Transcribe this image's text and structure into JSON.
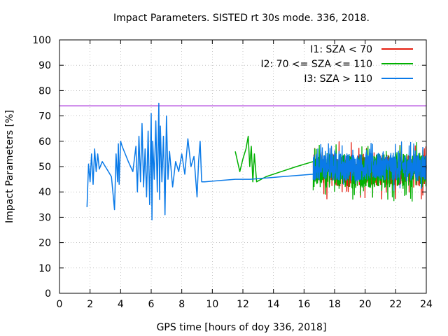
{
  "chart_data": {
    "type": "line",
    "title": "Impact Parameters. SISTED rt 30s mode. 336, 2018.",
    "xlabel": "GPS time [hours of doy 336, 2018]",
    "ylabel": "Impact Parameters [%]",
    "xlim": [
      0,
      24
    ],
    "ylim": [
      0,
      100
    ],
    "xticks": [
      0,
      2,
      4,
      6,
      8,
      10,
      12,
      14,
      16,
      18,
      20,
      22,
      24
    ],
    "yticks": [
      0,
      10,
      20,
      30,
      40,
      50,
      60,
      70,
      80,
      90,
      100
    ],
    "grid": true,
    "legend_position": "top-right",
    "reference_line": {
      "y": 74,
      "color": "#9400d3"
    },
    "series": [
      {
        "name": "I1: SZA < 70",
        "color": "#e51e10",
        "x": [
          16.6,
          24.0
        ],
        "y": [
          50,
          50
        ],
        "dense_range": {
          "x": [
            16.6,
            24.0
          ],
          "y": [
            37,
            60
          ]
        }
      },
      {
        "name": "I2: 70 <= SZA <= 110",
        "color": "#00b000",
        "x": [
          11.5,
          11.8,
          12.0,
          12.2,
          12.35,
          12.45,
          12.55,
          12.65,
          12.75,
          12.9,
          13.5,
          14.5,
          15.5,
          16.6
        ],
        "y": [
          56,
          48,
          53,
          57,
          62,
          50,
          58,
          44,
          55,
          44,
          46,
          48,
          50,
          52
        ],
        "dense_range": {
          "x": [
            16.6,
            24.0
          ],
          "y": [
            36,
            61
          ]
        }
      },
      {
        "name": "I3: SZA > 110",
        "color": "#0a7ae8",
        "x": [
          1.8,
          1.9,
          2.0,
          2.1,
          2.2,
          2.3,
          2.4,
          2.5,
          2.6,
          2.8,
          3.0,
          3.2,
          3.4,
          3.6,
          3.7,
          3.8,
          3.85,
          3.9,
          4.0,
          4.1,
          4.3,
          4.5,
          4.8,
          5.0,
          5.1,
          5.2,
          5.3,
          5.4,
          5.5,
          5.6,
          5.7,
          5.8,
          5.9,
          6.0,
          6.05,
          6.1,
          6.2,
          6.3,
          6.4,
          6.5,
          6.55,
          6.6,
          6.7,
          6.8,
          6.9,
          7.0,
          7.1,
          7.2,
          7.4,
          7.6,
          7.8,
          8.0,
          8.2,
          8.4,
          8.6,
          8.8,
          9.0,
          9.1,
          9.2,
          9.3,
          9.5,
          10.5,
          11.5,
          12.5,
          13.5,
          14.5,
          15.5,
          16.6
        ],
        "y": [
          34,
          51,
          44,
          55,
          43,
          57,
          48,
          55,
          49,
          52,
          50,
          48,
          46,
          33,
          55,
          44,
          59,
          43,
          60,
          58,
          55,
          52,
          48,
          58,
          40,
          62,
          44,
          67,
          42,
          57,
          38,
          64,
          35,
          71,
          29,
          60,
          45,
          68,
          40,
          75,
          37,
          66,
          44,
          62,
          31,
          70,
          45,
          56,
          42,
          52,
          48,
          55,
          47,
          61,
          50,
          54,
          38,
          52,
          60,
          44,
          44,
          44.5,
          45,
          45,
          45.5,
          46,
          46.5,
          47
        ],
        "dense_range": {
          "x": [
            16.6,
            24.0
          ],
          "y": [
            40,
            60
          ]
        }
      }
    ]
  }
}
